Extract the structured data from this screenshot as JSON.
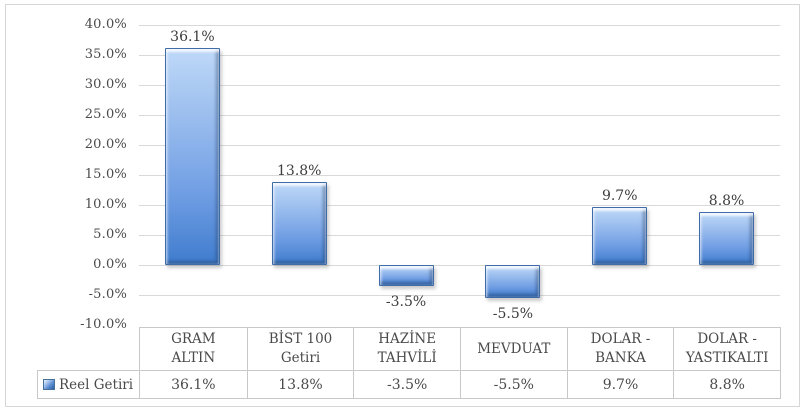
{
  "chart_data": {
    "type": "bar",
    "title": "",
    "xlabel": "",
    "ylabel": "",
    "categories": [
      "GRAM ALTIN",
      "BİST 100 Getiri",
      "HAZİNE TAHVİLİ",
      "MEVDUAT",
      "DOLAR - BANKA",
      "DOLAR - YASTIKALTI"
    ],
    "series": [
      {
        "name": "Reel Getiri",
        "values": [
          36.1,
          13.8,
          -3.5,
          -5.5,
          9.7,
          8.8
        ]
      }
    ],
    "value_labels": [
      "36.1%",
      "13.8%",
      "-3.5%",
      "-5.5%",
      "9.7%",
      "8.8%"
    ],
    "ylim": [
      -10,
      40
    ],
    "ytick_step": 5,
    "ytick_labels": [
      "40.0%",
      "35.0%",
      "30.0%",
      "25.0%",
      "20.0%",
      "15.0%",
      "10.0%",
      "5.0%",
      "0.0%",
      "-5.0%",
      "-10.0%"
    ],
    "grid": true,
    "legend_position": "bottom-left",
    "colors": {
      "bar_gradient_top": "#bed8f8",
      "bar_gradient_bottom": "#3f7ccd",
      "bar_border": "#3f6ca8",
      "gridline": "#d9d9d9",
      "axis_text": "#4a4a4a",
      "label_text": "#3d3d3d",
      "table_border": "#c9c9c9",
      "frame_border": "#d6d6d6"
    }
  },
  "data_table": {
    "legend_label": "Reel Getiri",
    "column_headers": [
      "GRAM\nALTIN",
      "BİST 100\nGetiri",
      "HAZİNE\nTAHVİLİ",
      "MEVDUAT",
      "DOLAR -\nBANKA",
      "DOLAR -\nYASTIKALTI"
    ],
    "values": [
      "36.1%",
      "13.8%",
      "-3.5%",
      "-5.5%",
      "9.7%",
      "8.8%"
    ]
  }
}
